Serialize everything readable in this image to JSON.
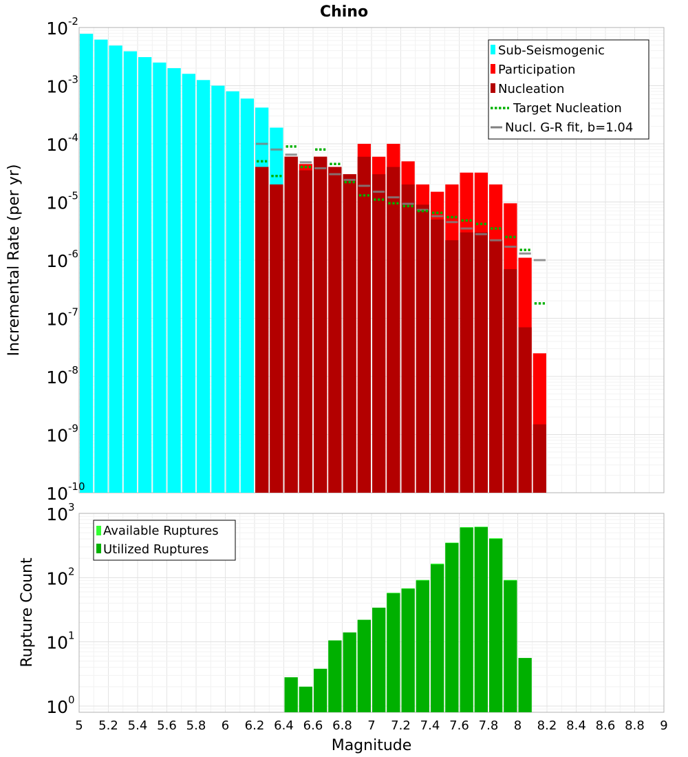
{
  "chart_data": [
    {
      "type": "bar",
      "title": "Chino",
      "xlabel": "",
      "ylabel": "Incremental Rate (per yr)",
      "yscale": "log",
      "xlim": [
        5,
        9
      ],
      "ylim": [
        1e-10,
        0.01
      ],
      "y_tick_exponents": [
        "-10",
        "-9",
        "-8",
        "-7",
        "-6",
        "-5",
        "-4",
        "-3",
        "-2"
      ],
      "y_tick_base": "10",
      "grid": true,
      "legend_position": "top-right",
      "legend": [
        "Sub-Seismogenic",
        "Participation",
        "Nucleation",
        "Target Nucleation",
        "Nucl. G-R fit, b=1.04"
      ],
      "colors": {
        "sub_seismogenic": "#00ffff",
        "participation": "#ff0000",
        "nucleation": "#b30000",
        "target_nucleation": "#00b000",
        "gr_fit": "#808080"
      },
      "series": [
        {
          "name": "Sub-Seismogenic",
          "x": [
            5.05,
            5.15,
            5.25,
            5.35,
            5.45,
            5.55,
            5.65,
            5.75,
            5.85,
            5.95,
            6.05,
            6.15,
            6.25,
            6.35,
            6.45
          ],
          "values": [
            0.0078,
            0.0062,
            0.0049,
            0.0039,
            0.0031,
            0.0025,
            0.002,
            0.0016,
            0.00125,
            0.001,
            0.0008,
            0.0006,
            0.00042,
            0.00019,
            6e-05
          ]
        },
        {
          "name": "Participation",
          "x": [
            6.25,
            6.35,
            6.45,
            6.55,
            6.65,
            6.75,
            6.85,
            6.95,
            7.05,
            7.15,
            7.25,
            7.35,
            7.45,
            7.55,
            7.65,
            7.75,
            7.85,
            7.95,
            8.05,
            8.15
          ],
          "values": [
            4e-05,
            2e-05,
            6e-05,
            4.5e-05,
            6e-05,
            4e-05,
            3e-05,
            0.0001,
            6e-05,
            0.0001,
            5e-05,
            2e-05,
            1.5e-05,
            2e-05,
            3.2e-05,
            3.2e-05,
            2e-05,
            9.5e-06,
            1.1e-06,
            2.5e-08
          ]
        },
        {
          "name": "Nucleation",
          "x": [
            6.25,
            6.35,
            6.45,
            6.55,
            6.65,
            6.75,
            6.85,
            6.95,
            7.05,
            7.15,
            7.25,
            7.35,
            7.45,
            7.55,
            7.65,
            7.75,
            7.85,
            7.95,
            8.05,
            8.15
          ],
          "values": [
            4e-05,
            2e-05,
            6e-05,
            3.5e-05,
            6e-05,
            4e-05,
            3e-05,
            6e-05,
            3e-05,
            4e-05,
            2e-05,
            9e-06,
            5e-06,
            2.2e-06,
            3e-06,
            3e-06,
            2.2e-06,
            7e-07,
            7e-08,
            1.5e-09
          ]
        },
        {
          "name": "Target Nucleation",
          "x": [
            6.25,
            6.35,
            6.45,
            6.55,
            6.65,
            6.75,
            6.85,
            6.95,
            7.05,
            7.15,
            7.25,
            7.35,
            7.45,
            7.55,
            7.65,
            7.75,
            7.85,
            7.95,
            8.05,
            8.15
          ],
          "values": [
            5e-05,
            2.8e-05,
            9e-05,
            4e-05,
            8e-05,
            4.5e-05,
            2.2e-05,
            1.3e-05,
            1.1e-05,
            9.5e-06,
            8.5e-06,
            7e-06,
            6.5e-06,
            5.5e-06,
            4.8e-06,
            4.2e-06,
            3.5e-06,
            2.5e-06,
            1.5e-06,
            1.8e-07
          ]
        },
        {
          "name": "Nucl. G-R fit, b=1.04",
          "x": [
            6.25,
            6.35,
            6.45,
            6.55,
            6.65,
            6.75,
            6.85,
            6.95,
            7.05,
            7.15,
            7.25,
            7.35,
            7.45,
            7.55,
            7.65,
            7.75,
            7.85,
            7.95,
            8.05,
            8.15
          ],
          "values": [
            0.0001,
            8e-05,
            6.5e-05,
            4.8e-05,
            3.8e-05,
            3e-05,
            2.4e-05,
            1.9e-05,
            1.5e-05,
            1.2e-05,
            9.3e-06,
            7.3e-06,
            5.7e-06,
            4.5e-06,
            3.5e-06,
            2.8e-06,
            2.2e-06,
            1.7e-06,
            1.3e-06,
            1e-06
          ]
        }
      ]
    },
    {
      "type": "bar",
      "title": "",
      "xlabel": "Magnitude",
      "ylabel": "Rupture Count",
      "yscale": "log",
      "xlim": [
        5,
        9
      ],
      "ylim": [
        0.8,
        1000
      ],
      "y_tick_exponents": [
        "0",
        "1",
        "2",
        "3"
      ],
      "y_tick_base": "10",
      "x_ticks": [
        "5",
        "5.2",
        "5.4",
        "5.6",
        "5.8",
        "6",
        "6.2",
        "6.4",
        "6.6",
        "6.8",
        "7",
        "7.2",
        "7.4",
        "7.6",
        "7.8",
        "8",
        "8.2",
        "8.4",
        "8.6",
        "8.8",
        "9"
      ],
      "grid": true,
      "legend_position": "top-left",
      "legend": [
        "Available Ruptures",
        "Utilized Ruptures"
      ],
      "colors": {
        "available": "#33ff33",
        "utilized": "#00b000"
      },
      "series": [
        {
          "name": "Available Ruptures",
          "x": [
            6.45,
            6.55,
            6.65,
            6.75,
            6.85,
            6.95,
            7.05,
            7.15,
            7.25,
            7.35,
            7.45,
            7.55,
            7.65,
            7.75,
            7.85,
            7.95,
            8.05
          ],
          "values": [
            2.8,
            2,
            3.8,
            10.5,
            14,
            22,
            34,
            58,
            68,
            92,
            165,
            350,
            610,
            620,
            410,
            92,
            5.6
          ]
        },
        {
          "name": "Utilized Ruptures",
          "x": [
            6.45,
            6.55,
            6.65,
            6.75,
            6.85,
            6.95,
            7.05,
            7.15,
            7.25,
            7.35,
            7.45,
            7.55,
            7.65,
            7.75,
            7.85,
            7.95,
            8.05
          ],
          "values": [
            2.8,
            2,
            3.8,
            10.5,
            14,
            22,
            34,
            57,
            67,
            90,
            160,
            345,
            600,
            610,
            400,
            90,
            5.6
          ]
        }
      ]
    }
  ]
}
